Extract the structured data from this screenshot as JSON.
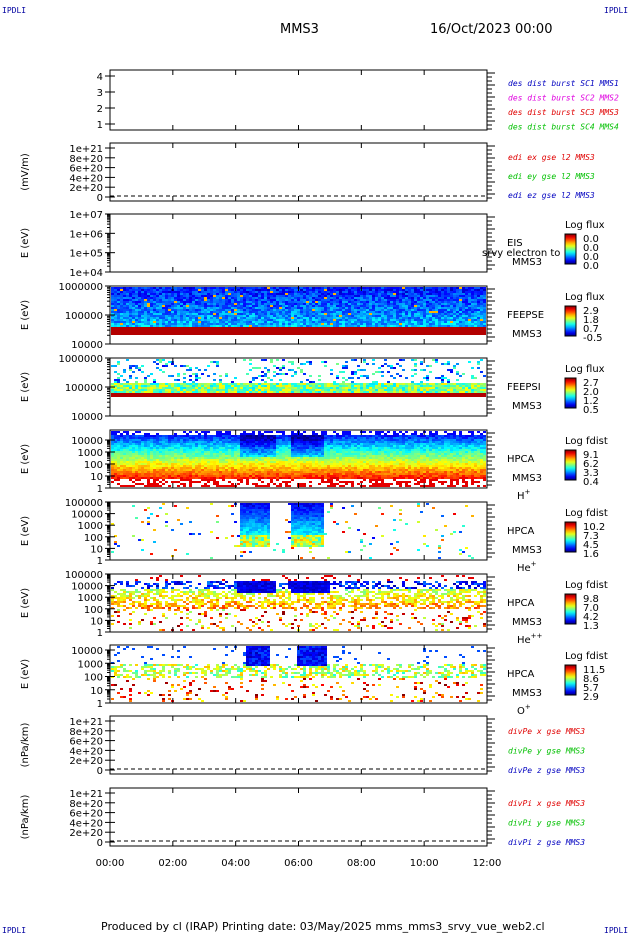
{
  "header": {
    "mission": "MMS3",
    "datetime": "16/Oct/2023 00:00",
    "corner_label": "IPDLI"
  },
  "footer": {
    "text": "Produced by cl (IRAP)   Printing date: 03/May/2025   mms_mms3_srvy_vue_web2.cl"
  },
  "colors": {
    "frame": "#000000",
    "mms1": "#0000c0",
    "mms2": "#e000e0",
    "mms3": "#e00000",
    "mms4": "#00c000",
    "red": "#e00000",
    "green": "#00c000",
    "blue": "#0000c0"
  },
  "chart_data": [
    {
      "type": "line",
      "id": "des-dist-burst",
      "ylabel": "",
      "ylim": [
        0.5,
        4.5
      ],
      "yticks": [
        "4",
        "3",
        "2",
        "1"
      ],
      "series": [
        {
          "name": "des dist burst SC1 MMS1",
          "color": "#0000c0",
          "values": []
        },
        {
          "name": "des dist burst SC2 MMS2",
          "color": "#e000e0",
          "values": []
        },
        {
          "name": "des dist burst SC3 MMS3",
          "color": "#e00000",
          "values": []
        },
        {
          "name": "des dist burst SC4 MMS4",
          "color": "#00c000",
          "values": []
        }
      ]
    },
    {
      "type": "line",
      "id": "edi-e-gse",
      "ylabel": "(mV/m)",
      "yticks": [
        "1e+21",
        "8e+20",
        "6e+20",
        "4e+20",
        "2e+20",
        "0"
      ],
      "zero_line": true,
      "series": [
        {
          "name": "edi ex gse l2 MMS3",
          "color": "#e00000",
          "values": []
        },
        {
          "name": "edi ey gse l2 MMS3",
          "color": "#00c000",
          "values": []
        },
        {
          "name": "edi ez gse l2 MMS3",
          "color": "#0000c0",
          "values": []
        }
      ]
    },
    {
      "type": "heatmap",
      "id": "eis",
      "ylabel": "E (eV)",
      "scale": "log",
      "yticks": [
        "1e+07",
        "1e+06",
        "1e+05",
        "1e+04"
      ],
      "instrument": [
        "EIS",
        "MMS3"
      ],
      "overlay_text": "srvy electron to",
      "colorbar": {
        "title": "Log flux",
        "ticks": [
          "0.0",
          "0.0",
          "0.0",
          "0.0"
        ]
      }
    },
    {
      "type": "heatmap",
      "id": "feepse",
      "ylabel": "E (eV)",
      "scale": "log",
      "yticks": [
        "1000000",
        "100000",
        "10000"
      ],
      "instrument": [
        "FEEPSE",
        "MMS3"
      ],
      "colorbar": {
        "title": "Log flux",
        "ticks": [
          "2.9",
          "1.8",
          "0.7",
          "-0.5"
        ]
      }
    },
    {
      "type": "heatmap",
      "id": "feepsi",
      "ylabel": "E (eV)",
      "scale": "log",
      "yticks": [
        "1000000",
        "100000",
        "10000"
      ],
      "instrument": [
        "FEEPSI",
        "MMS3"
      ],
      "colorbar": {
        "title": "Log flux",
        "ticks": [
          "2.7",
          "2.0",
          "1.2",
          "0.5"
        ]
      }
    },
    {
      "type": "heatmap",
      "id": "hpca-h",
      "ylabel": "E (eV)",
      "scale": "log",
      "yticks": [
        "10000",
        "1000",
        "100",
        "10",
        "1"
      ],
      "instrument": [
        "HPCA",
        "MMS3"
      ],
      "species": {
        "base": "H",
        "sup": "+"
      },
      "colorbar": {
        "title": "Log fdist",
        "ticks": [
          "9.1",
          "6.2",
          "3.3",
          "0.4"
        ]
      }
    },
    {
      "type": "heatmap",
      "id": "hpca-he1",
      "ylabel": "E (eV)",
      "scale": "log",
      "yticks": [
        "100000",
        "10000",
        "1000",
        "100",
        "10",
        "1"
      ],
      "instrument": [
        "HPCA",
        "MMS3"
      ],
      "species": {
        "base": "He",
        "sup": "+"
      },
      "colorbar": {
        "title": "Log fdist",
        "ticks": [
          "10.2",
          "7.3",
          "4.5",
          "1.6"
        ]
      }
    },
    {
      "type": "heatmap",
      "id": "hpca-he2",
      "ylabel": "E (eV)",
      "scale": "log",
      "yticks": [
        "100000",
        "10000",
        "1000",
        "100",
        "10",
        "1"
      ],
      "instrument": [
        "HPCA",
        "MMS3"
      ],
      "species": {
        "base": "He",
        "sup": "++"
      },
      "colorbar": {
        "title": "Log fdist",
        "ticks": [
          "9.8",
          "7.0",
          "4.2",
          "1.3"
        ]
      }
    },
    {
      "type": "heatmap",
      "id": "hpca-o",
      "ylabel": "E (eV)",
      "scale": "log",
      "yticks": [
        "10000",
        "1000",
        "100",
        "10",
        "1"
      ],
      "instrument": [
        "HPCA",
        "MMS3"
      ],
      "species": {
        "base": "O",
        "sup": "+"
      },
      "colorbar": {
        "title": "Log fdist",
        "ticks": [
          "11.5",
          "8.6",
          "5.7",
          "2.9"
        ]
      }
    },
    {
      "type": "line",
      "id": "divpe",
      "ylabel": "(nPa/km)",
      "yticks": [
        "1e+21",
        "8e+20",
        "6e+20",
        "4e+20",
        "2e+20",
        "0"
      ],
      "zero_line": true,
      "series": [
        {
          "name": "divPe x gse MMS3",
          "color": "#e00000",
          "values": []
        },
        {
          "name": "divPe y gse MMS3",
          "color": "#00c000",
          "values": []
        },
        {
          "name": "divPe z gse MMS3",
          "color": "#0000c0",
          "values": []
        }
      ]
    },
    {
      "type": "line",
      "id": "divpi",
      "ylabel": "(nPa/km)",
      "yticks": [
        "1e+21",
        "8e+20",
        "6e+20",
        "4e+20",
        "2e+20",
        "0"
      ],
      "zero_line": true,
      "series": [
        {
          "name": "divPi x gse MMS3",
          "color": "#e00000",
          "values": []
        },
        {
          "name": "divPi y gse MMS3",
          "color": "#00c000",
          "values": []
        },
        {
          "name": "divPi z gse MMS3",
          "color": "#0000c0",
          "values": []
        }
      ],
      "xticks": [
        "00:00",
        "02:00",
        "04:00",
        "06:00",
        "08:00",
        "10:00",
        "12:00"
      ]
    }
  ]
}
